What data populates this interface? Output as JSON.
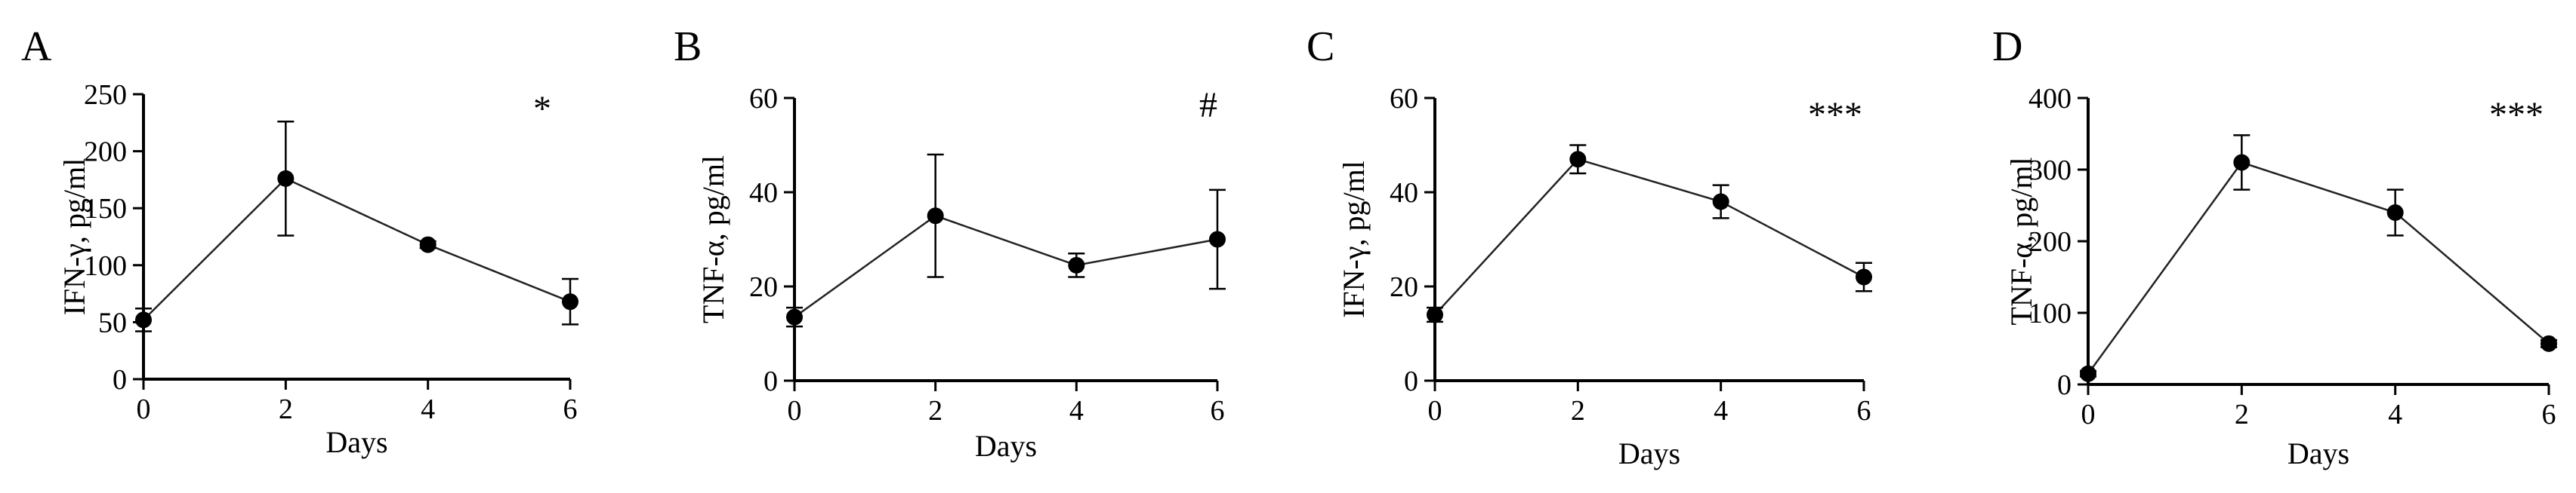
{
  "chart_data": [
    {
      "type": "line",
      "panel": "A",
      "title": "",
      "xlabel": "Days",
      "ylabel": "IFN-γ, pg/ml",
      "x": [
        0,
        2,
        4,
        6
      ],
      "xticks": [
        0,
        2,
        4,
        6
      ],
      "ylim": [
        0,
        250
      ],
      "yticks": [
        0,
        50,
        100,
        150,
        200,
        250
      ],
      "series": [
        {
          "values": [
            52,
            176,
            118,
            68
          ],
          "errors": [
            10,
            50,
            3,
            20
          ]
        }
      ],
      "annotation": "*",
      "grid": false,
      "legend": "none"
    },
    {
      "type": "line",
      "panel": "B",
      "title": "",
      "xlabel": "Days",
      "ylabel": "TNF-α, pg/ml",
      "x": [
        0,
        2,
        4,
        6
      ],
      "xticks": [
        0,
        2,
        4,
        6
      ],
      "ylim": [
        0,
        60
      ],
      "yticks": [
        0,
        20,
        40,
        60
      ],
      "series": [
        {
          "values": [
            13.5,
            35,
            24.5,
            30
          ],
          "errors": [
            2,
            13,
            2.5,
            10.5
          ]
        }
      ],
      "annotation": "#",
      "grid": false,
      "legend": "none"
    },
    {
      "type": "line",
      "panel": "C",
      "title": "",
      "xlabel": "Days",
      "ylabel": "IFN-γ, pg/ml",
      "x": [
        0,
        2,
        4,
        6
      ],
      "xticks": [
        0,
        2,
        4,
        6
      ],
      "ylim": [
        0,
        60
      ],
      "yticks": [
        0,
        20,
        40,
        60
      ],
      "series": [
        {
          "values": [
            14,
            47,
            38,
            22
          ],
          "errors": [
            1.5,
            3,
            3.5,
            3
          ]
        }
      ],
      "annotation": "***",
      "grid": false,
      "legend": "none"
    },
    {
      "type": "line",
      "panel": "D",
      "title": "",
      "xlabel": "Days",
      "ylabel": "TNF-α, pg/ml",
      "x": [
        0,
        2,
        4,
        6
      ],
      "xticks": [
        0,
        2,
        4,
        6
      ],
      "ylim": [
        0,
        400
      ],
      "yticks": [
        0,
        100,
        200,
        300,
        400
      ],
      "series": [
        {
          "values": [
            15,
            310,
            240,
            57
          ],
          "errors": [
            4,
            38,
            32,
            5
          ]
        }
      ],
      "annotation": "***",
      "grid": false,
      "legend": "none"
    }
  ]
}
